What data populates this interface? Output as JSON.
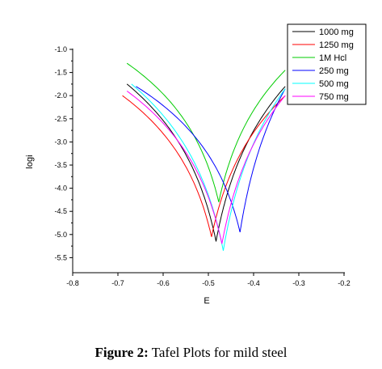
{
  "caption": {
    "label": "Figure 2:",
    "text": "Tafel Plots for mild steel"
  },
  "chart_data": {
    "type": "line",
    "xlabel": "E",
    "ylabel": "logi",
    "xlim": [
      -0.8,
      -0.2
    ],
    "ylim": [
      -5.7,
      -0.9
    ],
    "xticks": [
      -0.8,
      -0.7,
      -0.6,
      -0.5,
      -0.4,
      -0.3,
      -0.2
    ],
    "xtick_labels": [
      "-0.8",
      "-0.7",
      "-0.6",
      "-0.5",
      "-0.4",
      "-0.3",
      "-0.2"
    ],
    "yticks": [
      -1.0,
      -1.5,
      -2.0,
      -2.5,
      -3.0,
      -3.5,
      -4.0,
      -4.5,
      -5.0,
      -5.5
    ],
    "ytick_labels": [
      "-1.0",
      "-1.5",
      "-2.0",
      "-2.5",
      "-3.0",
      "-3.5",
      "-4.0",
      "-4.5",
      "-5.0",
      "-5.5"
    ],
    "grid": false,
    "legend_position": "top-right",
    "series": [
      {
        "name": "1000 mg",
        "color": "#000000",
        "Ecorr": -0.483,
        "logi_min": -5.15,
        "E_start": -0.68,
        "logi_start": -1.75,
        "E_end": -0.33,
        "logi_end": -1.8
      },
      {
        "name": "1250 mg",
        "color": "#ff0000",
        "Ecorr": -0.493,
        "logi_min": -5.05,
        "E_start": -0.69,
        "logi_start": -2.0,
        "E_end": -0.33,
        "logi_end": -2.0
      },
      {
        "name": "1M Hcl",
        "color": "#00cc00",
        "Ecorr": -0.477,
        "logi_min": -4.3,
        "E_start": -0.68,
        "logi_start": -1.3,
        "E_end": -0.33,
        "logi_end": -1.45
      },
      {
        "name": "250 mg",
        "color": "#0000ff",
        "Ecorr": -0.43,
        "logi_min": -4.95,
        "E_start": -0.66,
        "logi_start": -1.8,
        "E_end": -0.33,
        "logi_end": -1.85
      },
      {
        "name": "500 mg",
        "color": "#00ffff",
        "Ecorr": -0.467,
        "logi_min": -5.35,
        "E_start": -0.67,
        "logi_start": -1.75,
        "E_end": -0.33,
        "logi_end": -1.85
      },
      {
        "name": "750 mg",
        "color": "#ff00ff",
        "Ecorr": -0.47,
        "logi_min": -5.2,
        "E_start": -0.68,
        "logi_start": -1.9,
        "E_end": -0.33,
        "logi_end": -2.0
      }
    ]
  }
}
